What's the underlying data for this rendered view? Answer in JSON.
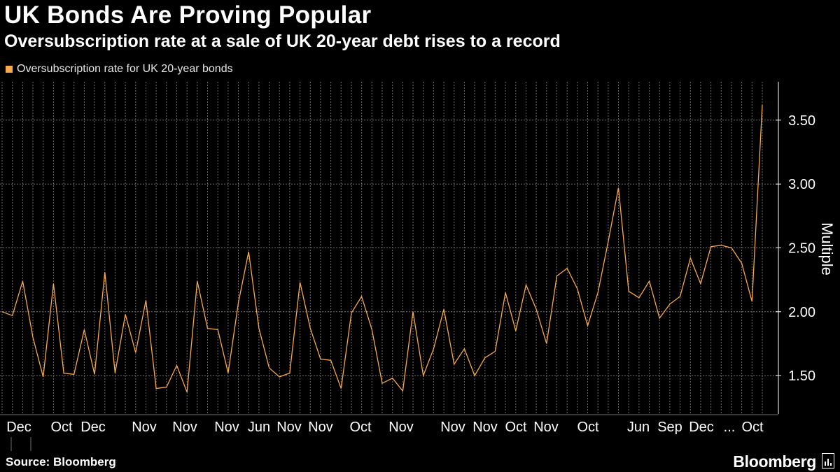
{
  "header": {
    "title": "UK Bonds Are Proving Popular",
    "subtitle": "Oversubscription rate at a sale of UK 20-year debt rises to a record"
  },
  "footer": {
    "source": "Source: Bloomberg",
    "brand": "Bloomberg"
  },
  "colors": {
    "background": "#000000",
    "series": "#f7a94b",
    "grid": "#6e6e6e",
    "text": "#ffffff"
  },
  "chart_data": {
    "type": "line",
    "ylabel": "Multiple",
    "ylim": [
      1.2,
      3.8
    ],
    "yticks": [
      1.5,
      2.0,
      2.5,
      3.0,
      3.5
    ],
    "ytick_labels": [
      "1.50",
      "2.00",
      "2.50",
      "3.00",
      "3.50"
    ],
    "y_axis_side": "right",
    "grid": true,
    "legend_position": "top-left",
    "x_tick_labels": [
      "Dec",
      "Oct",
      "Dec",
      "Nov",
      "Nov",
      "Nov",
      "Jun",
      "Nov",
      "Nov",
      "Oct",
      "Nov",
      "Nov",
      "Nov",
      "Oct",
      "Nov",
      "Oct",
      "Jun",
      "Sep",
      "Dec",
      "...",
      "Oct"
    ],
    "series": [
      {
        "name": "Oversubscription rate for UK 20-year bonds",
        "values": [
          2.0,
          1.97,
          2.24,
          1.8,
          1.49,
          2.22,
          1.52,
          1.51,
          1.86,
          1.51,
          2.31,
          1.52,
          1.98,
          1.68,
          2.09,
          1.4,
          1.41,
          1.58,
          1.37,
          2.24,
          1.87,
          1.86,
          1.52,
          2.07,
          2.47,
          1.87,
          1.56,
          1.49,
          1.52,
          2.23,
          1.87,
          1.63,
          1.62,
          1.4,
          1.99,
          2.12,
          1.86,
          1.44,
          1.48,
          1.38,
          2.0,
          1.5,
          1.71,
          2.02,
          1.59,
          1.71,
          1.5,
          1.64,
          1.69,
          2.15,
          1.85,
          2.21,
          2.02,
          1.75,
          2.28,
          2.34,
          2.18,
          1.89,
          2.15,
          2.55,
          2.97,
          2.16,
          2.11,
          2.24,
          1.95,
          2.06,
          2.12,
          2.42,
          2.22,
          2.51,
          2.52,
          2.5,
          2.38,
          2.08,
          3.62
        ]
      }
    ]
  }
}
